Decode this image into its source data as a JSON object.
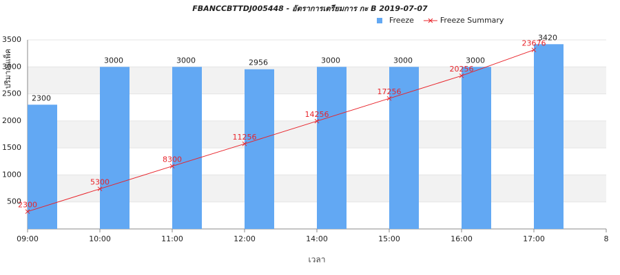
{
  "chart_data": {
    "type": "bar-line",
    "title": "FBANCCBTTDJ005448 - อัตราการเตรียมการ กะ B 2019-07-07",
    "x_label": "เวลา",
    "y_label": "ปริมาณแพ็ค",
    "categories": [
      "09:00",
      "10:00",
      "11:00",
      "12:00",
      "14:00",
      "15:00",
      "16:00",
      "17:00",
      "8"
    ],
    "series": [
      {
        "name": "Freeze",
        "type": "bar",
        "color": "#62a8f3",
        "values": [
          2300,
          3000,
          3000,
          2956,
          3000,
          3000,
          3000,
          3420,
          null
        ]
      },
      {
        "name": "Freeze Summary",
        "type": "line",
        "color": "#e8232a",
        "axis": "y2",
        "values": [
          2300,
          5300,
          8300,
          11256,
          14256,
          17256,
          20256,
          23676,
          null
        ]
      }
    ],
    "ylim": [
      0,
      3500
    ],
    "yticks": [
      500,
      1000,
      1500,
      2000,
      2500,
      3000,
      3500
    ],
    "y2lim": [
      0,
      25000
    ],
    "grid": "alternating",
    "legend": "top"
  }
}
